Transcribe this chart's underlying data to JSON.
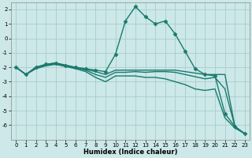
{
  "xlabel": "Humidex (Indice chaleur)",
  "background_color": "#cce8e8",
  "grid_color": "#aacccc",
  "line_color": "#1a7a6e",
  "x_values": [
    0,
    1,
    2,
    3,
    4,
    5,
    6,
    7,
    8,
    9,
    10,
    11,
    12,
    13,
    14,
    15,
    16,
    17,
    18,
    19,
    20,
    21,
    22,
    23
  ],
  "series": [
    {
      "y": [
        -2.0,
        -2.5,
        -2.0,
        -1.8,
        -1.7,
        -1.9,
        -2.0,
        -2.1,
        -2.2,
        -2.3,
        -1.1,
        1.2,
        2.2,
        1.5,
        1.0,
        1.2,
        0.3,
        -0.9,
        -2.1,
        -2.5,
        -2.6,
        -5.2,
        -6.1,
        -6.6
      ],
      "marker": "D",
      "markersize": 2.5,
      "linewidth": 1.0
    },
    {
      "y": [
        -2.0,
        -2.5,
        -2.0,
        -1.8,
        -1.7,
        -1.85,
        -2.0,
        -2.15,
        -2.3,
        -2.5,
        -2.2,
        -2.2,
        -2.2,
        -2.2,
        -2.2,
        -2.2,
        -2.2,
        -2.3,
        -2.4,
        -2.5,
        -2.5,
        -2.5,
        -6.1,
        -6.6
      ],
      "marker": "None",
      "linewidth": 1.0
    },
    {
      "y": [
        -2.0,
        -2.5,
        -2.05,
        -1.85,
        -1.75,
        -1.9,
        -2.05,
        -2.2,
        -2.5,
        -2.7,
        -2.35,
        -2.35,
        -2.3,
        -2.35,
        -2.3,
        -2.3,
        -2.35,
        -2.5,
        -2.65,
        -2.8,
        -2.7,
        -3.5,
        -6.1,
        -6.6
      ],
      "marker": "None",
      "linewidth": 1.0
    },
    {
      "y": [
        -2.0,
        -2.5,
        -2.1,
        -1.9,
        -1.8,
        -1.95,
        -2.1,
        -2.3,
        -2.7,
        -3.0,
        -2.6,
        -2.6,
        -2.6,
        -2.7,
        -2.7,
        -2.8,
        -3.0,
        -3.2,
        -3.5,
        -3.6,
        -3.5,
        -5.5,
        -6.2,
        -6.6
      ],
      "marker": "None",
      "linewidth": 1.0
    }
  ],
  "ylim": [
    -7.0,
    2.5
  ],
  "xlim": [
    -0.5,
    23.5
  ],
  "yticks": [
    -6,
    -5,
    -4,
    -3,
    -2,
    -1,
    0,
    1,
    2
  ],
  "xticks": [
    0,
    1,
    2,
    3,
    4,
    5,
    6,
    7,
    8,
    9,
    10,
    11,
    12,
    13,
    14,
    15,
    16,
    17,
    18,
    19,
    20,
    21,
    22,
    23
  ],
  "xlabel_fontsize": 6.0,
  "tick_fontsize": 5.0
}
